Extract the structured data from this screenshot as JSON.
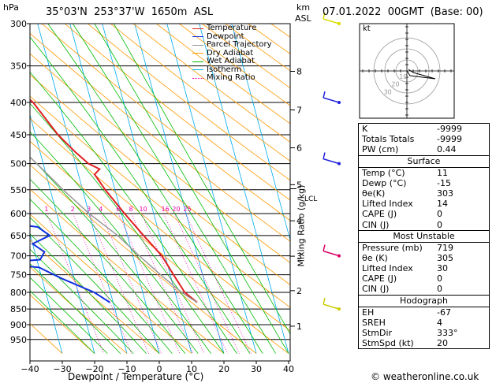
{
  "header": {
    "hpa_label": "hPa",
    "location": "35°03'N  253°37'W  1650m  ASL",
    "km_label": "km",
    "asl_label": "ASL",
    "datetime": "07.01.2022  00GMT  (Base: 00)"
  },
  "chart_data": {
    "type": "skew-t",
    "xlabel": "Dewpoint / Temperature (°C)",
    "ylabel_left": "hPa",
    "ylabel_right": "Mixing Ratio (g/kg)",
    "x_ticks": [
      -40,
      -30,
      -20,
      -10,
      0,
      10,
      20,
      30,
      40
    ],
    "x_tick_labels": [
      "−40",
      "−30",
      "−20",
      "−10",
      "0",
      "10",
      "20",
      "30",
      "40"
    ],
    "pressure_levels": [
      300,
      350,
      400,
      450,
      500,
      550,
      600,
      650,
      700,
      750,
      800,
      850,
      900,
      950
    ],
    "km_ticks": [
      {
        "km": 1,
        "p": 905
      },
      {
        "km": 2,
        "p": 795
      },
      {
        "km": 3,
        "p": 701
      },
      {
        "km": 4,
        "p": 616
      },
      {
        "km": 5,
        "p": 540
      },
      {
        "km": 6,
        "p": 472
      },
      {
        "km": 7,
        "p": 411
      },
      {
        "km": 8,
        "p": 357
      }
    ],
    "lcl_label": "LCL",
    "lcl_p": 548,
    "mixing_ratio_values": [
      1,
      2,
      3,
      4,
      6,
      8,
      10,
      16,
      20,
      25
    ],
    "mixing_ratio_labels": [
      "1",
      "2",
      "3",
      "4",
      "6",
      "8",
      "10",
      "16",
      "20",
      "25"
    ],
    "legend": [
      {
        "name": "Temperature",
        "color": "#e02020"
      },
      {
        "name": "Dewpoint",
        "color": "#1030e0"
      },
      {
        "name": "Parcel Trajectory",
        "color": "#999999"
      },
      {
        "name": "Dry Adiabat",
        "color": "#ff9900"
      },
      {
        "name": "Wet Adiabat",
        "color": "#00bb00"
      },
      {
        "name": "Isotherm",
        "color": "#00aaee"
      },
      {
        "name": "Mixing Ratio",
        "color": "#ee00aa"
      }
    ],
    "series": [
      {
        "name": "Temperature",
        "color": "#e02020",
        "points": [
          [
            830,
            16
          ],
          [
            800,
            13
          ],
          [
            750,
            11
          ],
          [
            700,
            9
          ],
          [
            650,
            5
          ],
          [
            600,
            1
          ],
          [
            550,
            -3
          ],
          [
            520,
            -5
          ],
          [
            510,
            -3
          ],
          [
            500,
            -6
          ],
          [
            480,
            -9
          ],
          [
            450,
            -13
          ],
          [
            400,
            -18
          ],
          [
            370,
            -24
          ],
          [
            350,
            -26
          ],
          [
            320,
            -31
          ],
          [
            300,
            -35
          ]
        ]
      },
      {
        "name": "Dewpoint",
        "color": "#1030e0",
        "points": [
          [
            830,
            -11
          ],
          [
            800,
            -15
          ],
          [
            760,
            -24
          ],
          [
            730,
            -30
          ],
          [
            720,
            -44
          ],
          [
            710,
            -29
          ],
          [
            690,
            -27
          ],
          [
            670,
            -30
          ],
          [
            650,
            -24
          ],
          [
            630,
            -27
          ],
          [
            620,
            -37
          ],
          [
            610,
            -38
          ],
          [
            600,
            -28
          ],
          [
            590,
            -36
          ],
          [
            580,
            -34
          ],
          [
            560,
            -29
          ],
          [
            530,
            -33
          ],
          [
            520,
            -30
          ],
          [
            500,
            -37
          ],
          [
            480,
            -28
          ],
          [
            450,
            -26
          ],
          [
            400,
            -31
          ],
          [
            350,
            -37
          ],
          [
            320,
            -39
          ],
          [
            300,
            -44
          ]
        ]
      },
      {
        "name": "Parcel Trajectory",
        "color": "#999999",
        "points": [
          [
            830,
            16
          ],
          [
            800,
            12
          ],
          [
            750,
            7
          ],
          [
            700,
            2
          ],
          [
            650,
            -3
          ],
          [
            600,
            -10
          ],
          [
            550,
            -16
          ],
          [
            500,
            -22
          ],
          [
            450,
            -29
          ],
          [
            400,
            -36
          ],
          [
            350,
            -44
          ],
          [
            300,
            -53
          ]
        ]
      }
    ],
    "wind_barb_colors": [
      "#dddd00",
      "#2020dd",
      "#2020dd",
      "#dd0066",
      "#cccc00"
    ]
  },
  "hodograph": {
    "kt_label": "kt",
    "ring_labels": [
      "10",
      "20",
      "30"
    ]
  },
  "indices": {
    "rows": [
      {
        "label": "K",
        "value": "-9999"
      },
      {
        "label": "Totals Totals",
        "value": "-9999"
      },
      {
        "label": "PW (cm)",
        "value": "0.44"
      }
    ]
  },
  "surface": {
    "title": "Surface",
    "rows": [
      {
        "label": "Temp (°C)",
        "value": "11"
      },
      {
        "label": "Dewp (°C)",
        "value": "-15"
      },
      {
        "label": "θe(K)",
        "value": "303"
      },
      {
        "label": "Lifted Index",
        "value": "14"
      },
      {
        "label": "CAPE (J)",
        "value": "0"
      },
      {
        "label": "CIN (J)",
        "value": "0"
      }
    ]
  },
  "most_unstable": {
    "title": "Most Unstable",
    "rows": [
      {
        "label": "Pressure (mb)",
        "value": "719"
      },
      {
        "label": "θe (K)",
        "value": "305"
      },
      {
        "label": "Lifted Index",
        "value": "30"
      },
      {
        "label": "CAPE (J)",
        "value": "0"
      },
      {
        "label": "CIN (J)",
        "value": "0"
      }
    ]
  },
  "hodograph_table": {
    "title": "Hodograph",
    "rows": [
      {
        "label": "EH",
        "value": "-67"
      },
      {
        "label": "SREH",
        "value": "4"
      },
      {
        "label": "StmDir",
        "value": "333°"
      },
      {
        "label": "StmSpd (kt)",
        "value": "20"
      }
    ]
  },
  "footer": {
    "copyright": "© weatheronline.co.uk"
  }
}
